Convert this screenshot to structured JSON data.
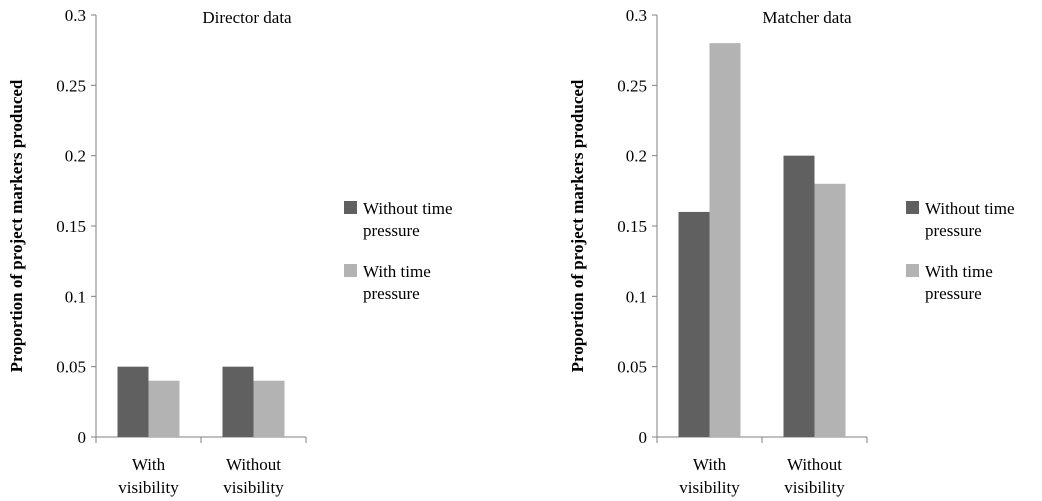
{
  "chart_data": [
    {
      "type": "bar",
      "title": "Director data",
      "ylabel": "Proportion of project markers produced",
      "xlabel": "",
      "ylim": [
        0,
        0.3
      ],
      "yticks": [
        "0",
        "0.05",
        "0.1",
        "0.15",
        "0.2",
        "0.25",
        "0.3"
      ],
      "categories": [
        {
          "line1": "With",
          "line2": "visibility"
        },
        {
          "line1": "Without",
          "line2": "visibility"
        }
      ],
      "series": [
        {
          "name_line1": "Without time",
          "name_line2": "pressure",
          "color": "#606060",
          "values": [
            0.05,
            0.05
          ]
        },
        {
          "name_line1": "With time",
          "name_line2": "pressure",
          "color": "#b3b3b3",
          "values": [
            0.04,
            0.04
          ]
        }
      ],
      "grid": false,
      "legend": "right"
    },
    {
      "type": "bar",
      "title": "Matcher data",
      "ylabel": "Proportion of project markers produced",
      "xlabel": "",
      "ylim": [
        0,
        0.3
      ],
      "yticks": [
        "0",
        "0.05",
        "0.1",
        "0.15",
        "0.2",
        "0.25",
        "0.3"
      ],
      "categories": [
        {
          "line1": "With",
          "line2": "visibility"
        },
        {
          "line1": "Without",
          "line2": "visibility"
        }
      ],
      "series": [
        {
          "name_line1": "Without time",
          "name_line2": "pressure",
          "color": "#606060",
          "values": [
            0.16,
            0.2
          ]
        },
        {
          "name_line1": "With time",
          "name_line2": "pressure",
          "color": "#b3b3b3",
          "values": [
            0.28,
            0.18
          ]
        }
      ],
      "grid": false,
      "legend": "right"
    }
  ]
}
